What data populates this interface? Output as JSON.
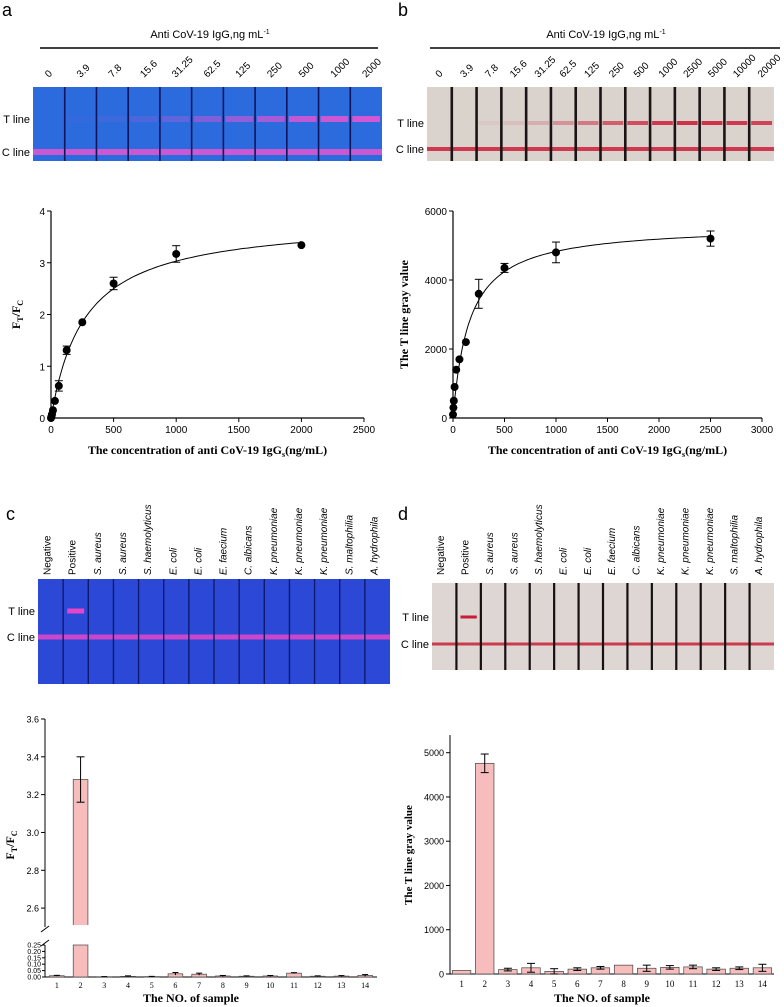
{
  "panels": {
    "a": {
      "letter": "a"
    },
    "b": {
      "letter": "b"
    },
    "c": {
      "letter": "c"
    },
    "d": {
      "letter": "d"
    }
  },
  "strips": {
    "a": {
      "title": "Anti CoV-19 IgG,ng mL",
      "title_sup": "-1",
      "t_label": "T line",
      "c_label": "C line",
      "lanes": [
        "0",
        "3.9",
        "7.8",
        "15.6",
        "31.25",
        "62.5",
        "125",
        "250",
        "500",
        "1000",
        "2000"
      ],
      "t_intensity": [
        0,
        0.05,
        0.1,
        0.18,
        0.28,
        0.45,
        0.55,
        0.65,
        0.8,
        0.85,
        0.9
      ],
      "bg_color": "#2b6bde",
      "line_color": "#e655d0"
    },
    "b": {
      "title": "Anti CoV-19 IgG,ng mL",
      "title_sup": "-1",
      "t_label": "T line",
      "c_label": "C line",
      "lanes": [
        "0",
        "3.9",
        "7.8",
        "15.6",
        "31.25",
        "62.5",
        "125",
        "250",
        "500",
        "1000",
        "2500",
        "5000",
        "10000",
        "20000"
      ],
      "t_intensity": [
        0,
        0,
        0.05,
        0.1,
        0.2,
        0.35,
        0.5,
        0.65,
        0.75,
        0.85,
        0.9,
        0.9,
        0.85,
        0.8
      ],
      "bg_color": "#dad2cc",
      "line_color": "#cc1f3a"
    },
    "c": {
      "t_label": "T line",
      "c_label": "C line",
      "lanes": [
        "Negative",
        "Positive",
        "S. aureus",
        "S. aureus",
        "S. haemolyticus",
        "E. coli",
        "E. coli",
        "E. faecium",
        "C. albicans",
        "K. pneumoniae",
        "K. pneumoniae",
        "K. pneumoniae",
        "S. maltophilia",
        "A. hydrophila"
      ],
      "italic": [
        false,
        false,
        true,
        true,
        true,
        true,
        true,
        true,
        true,
        true,
        true,
        true,
        true,
        true
      ],
      "t_intensity": [
        0,
        1,
        0,
        0,
        0,
        0,
        0,
        0,
        0,
        0,
        0,
        0,
        0,
        0
      ],
      "bg_color": "#2b49d6",
      "line_color": "#e645c8"
    },
    "d": {
      "t_label": "T line",
      "c_label": "C line",
      "lanes": [
        "Negative",
        "Positive",
        "S. aureus",
        "S. aureus",
        "S. haemolyticus",
        "E. coli",
        "E. coli",
        "E. faecium",
        "C. albicans",
        "K. pneumoniae",
        "K. pneumoniae",
        "K. pneumoniae",
        "S. maltophilia",
        "A. hydrophila"
      ],
      "italic": [
        false,
        false,
        true,
        true,
        true,
        true,
        true,
        true,
        true,
        true,
        true,
        true,
        true,
        true
      ],
      "t_intensity": [
        0,
        1,
        0,
        0,
        0,
        0,
        0,
        0,
        0,
        0,
        0,
        0,
        0,
        0
      ],
      "bg_color": "#ddd6d2",
      "line_color": "#c81e36"
    }
  },
  "chart_data": [
    {
      "id": "a",
      "type": "scatter",
      "title": "",
      "xlabel": "The concentration of anti CoV-19 IgG",
      "xlabel_sub": "s",
      "xlabel_tail": "(ng/mL)",
      "ylabel": "F",
      "ylabel_sub1": "T",
      "ylabel_mid": "/F",
      "ylabel_sub2": "C",
      "xlim": [
        0,
        2500
      ],
      "ylim": [
        0,
        4
      ],
      "xticks": [
        0,
        500,
        1000,
        1500,
        2000,
        2500
      ],
      "yticks": [
        0,
        1,
        2,
        3,
        4
      ],
      "x": [
        0,
        3.9,
        7.8,
        15.6,
        31.25,
        62.5,
        125,
        250,
        500,
        1000,
        2000
      ],
      "y": [
        0.0,
        0.03,
        0.07,
        0.15,
        0.33,
        0.62,
        1.31,
        1.85,
        2.6,
        3.17,
        3.34
      ],
      "err": [
        0,
        0,
        0,
        0,
        0,
        0.1,
        0.08,
        0,
        0.12,
        0.16,
        0
      ],
      "fit": {
        "model": "hyperbola",
        "vmax": 3.85,
        "k": 270
      }
    },
    {
      "id": "b",
      "type": "scatter",
      "title": "",
      "xlabel": "The concentration of anti CoV-19 IgG",
      "xlabel_sub": "s",
      "xlabel_tail": "(ng/mL)",
      "ylabel": "The T line gray value",
      "xlim": [
        0,
        3000
      ],
      "ylim": [
        0,
        6000
      ],
      "xticks": [
        0,
        500,
        1000,
        1500,
        2000,
        2500,
        3000
      ],
      "yticks": [
        0,
        2000,
        4000,
        6000
      ],
      "x": [
        0,
        3.9,
        7.8,
        15.6,
        31.25,
        62.5,
        125,
        250,
        500,
        1000,
        2500
      ],
      "y": [
        100,
        300,
        500,
        900,
        1400,
        1700,
        2200,
        3600,
        4350,
        4800,
        5200
      ],
      "err": [
        0,
        0,
        0,
        0,
        0,
        0,
        0,
        420,
        130,
        300,
        220
      ],
      "fit": {
        "model": "hyperbola",
        "vmax": 5600,
        "k": 160
      }
    },
    {
      "id": "c",
      "type": "bar",
      "title": "",
      "xlabel": "The NO. of sample",
      "ylabel": "F",
      "ylabel_sub1": "T",
      "ylabel_mid": "/F",
      "ylabel_sub2": "C",
      "categories": [
        "1",
        "2",
        "3",
        "4",
        "5",
        "6",
        "7",
        "8",
        "9",
        "10",
        "11",
        "12",
        "13",
        "14"
      ],
      "values": [
        0.01,
        3.28,
        0.002,
        0.005,
        0.003,
        0.025,
        0.022,
        0.008,
        0.006,
        0.008,
        0.03,
        0.006,
        0.007,
        0.012
      ],
      "err": [
        0.003,
        0.12,
        0.001,
        0.004,
        0.002,
        0.01,
        0.008,
        0.004,
        0.003,
        0.004,
        0.004,
        0.003,
        0.004,
        0.007
      ],
      "ylim_low": [
        0,
        0.25
      ],
      "ylim_high": [
        2.5,
        3.6
      ],
      "yticks_low": [
        "0.00",
        "0.05",
        "0.10",
        "0.15",
        "0.20",
        "0.25"
      ],
      "yticks_high": [
        "2.6",
        "2.8",
        "3.0",
        "3.2",
        "3.4",
        "3.6"
      ],
      "bar_color": "#f7bdbd"
    },
    {
      "id": "d",
      "type": "bar",
      "title": "",
      "xlabel": "The NO. of sample",
      "ylabel": "The T line gray value",
      "categories": [
        "1",
        "2",
        "3",
        "4",
        "5",
        "6",
        "7",
        "8",
        "9",
        "10",
        "11",
        "12",
        "13",
        "14"
      ],
      "values": [
        80,
        4760,
        100,
        140,
        60,
        110,
        140,
        200,
        130,
        150,
        160,
        110,
        130,
        140
      ],
      "err": [
        0,
        210,
        30,
        100,
        60,
        30,
        30,
        0,
        70,
        40,
        40,
        30,
        30,
        80
      ],
      "ylim": [
        0,
        5400
      ],
      "yticks": [
        0,
        1000,
        2000,
        3000,
        4000,
        5000
      ],
      "bar_color": "#f7bdbd"
    }
  ]
}
